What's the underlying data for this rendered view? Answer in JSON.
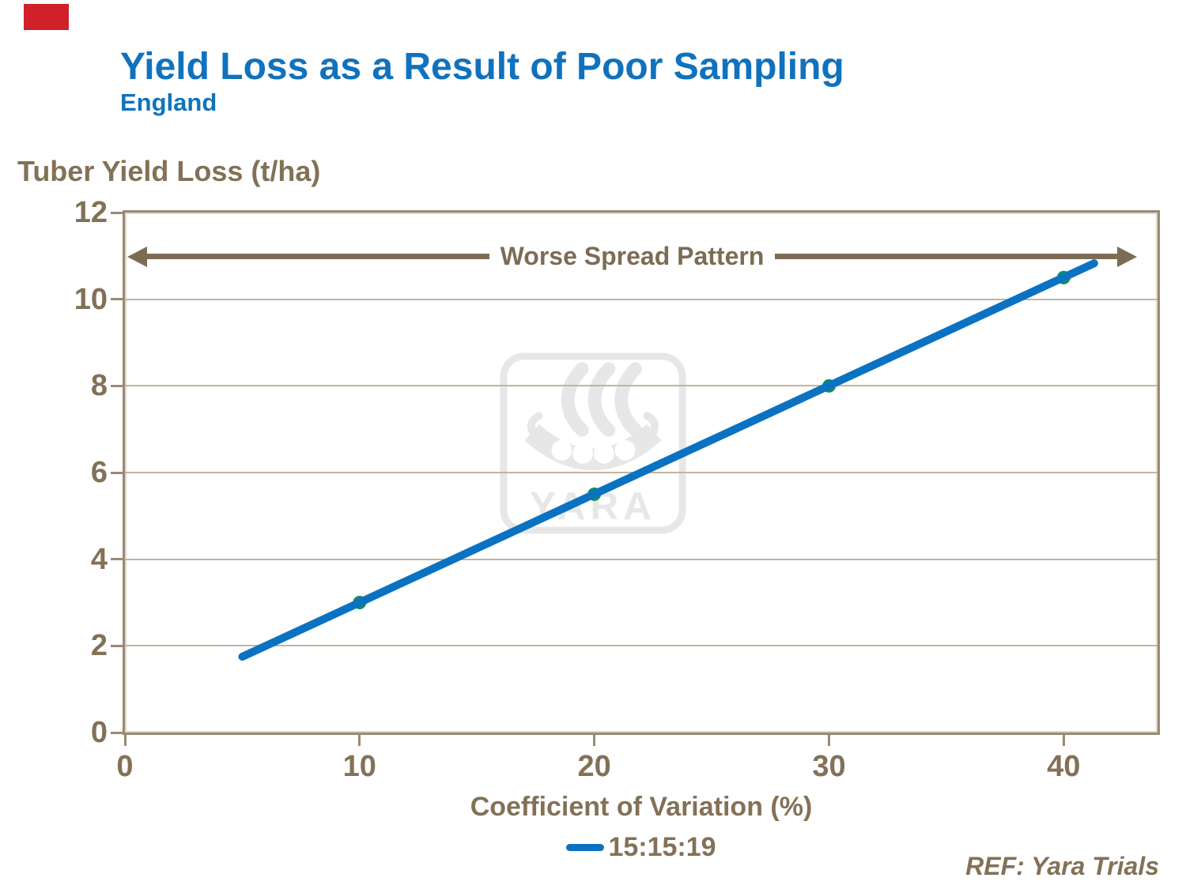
{
  "marker_box": {
    "color": "#d02029"
  },
  "watermark": {
    "text": "YARA"
  },
  "colors": {
    "accent_blue": "#1072bd",
    "text_brown": "#837157",
    "axis_tan": "#998a74",
    "gridline_tan": "#c1b4a1",
    "arrow_brown": "#7d6c55"
  },
  "chart_data": {
    "type": "line",
    "title": "Yield Loss as a Result of Poor Sampling",
    "subtitle": "England",
    "xlabel": "Coefficient of Variation (%)",
    "ylabel": "Tuber Yield Loss (t/ha)",
    "xlim": [
      0,
      44
    ],
    "ylim": [
      0,
      12
    ],
    "x_ticks": [
      0,
      10,
      20,
      30,
      40
    ],
    "y_ticks": [
      0,
      2,
      4,
      6,
      8,
      10,
      12
    ],
    "grid": "horizontal-only",
    "legend_position": "bottom-center",
    "annotation": "Worse Spread Pattern",
    "series": [
      {
        "name": "15:15:19",
        "x": [
          10,
          20,
          30,
          40
        ],
        "y": [
          3,
          5.5,
          8,
          10.5
        ],
        "trendline_extent": {
          "x": [
            5,
            41.3
          ],
          "y": [
            1.75,
            10.83
          ]
        },
        "line_color": "#0b72c2",
        "marker_color": "#0e8e62"
      }
    ],
    "ref": "REF: Yara Trials"
  }
}
